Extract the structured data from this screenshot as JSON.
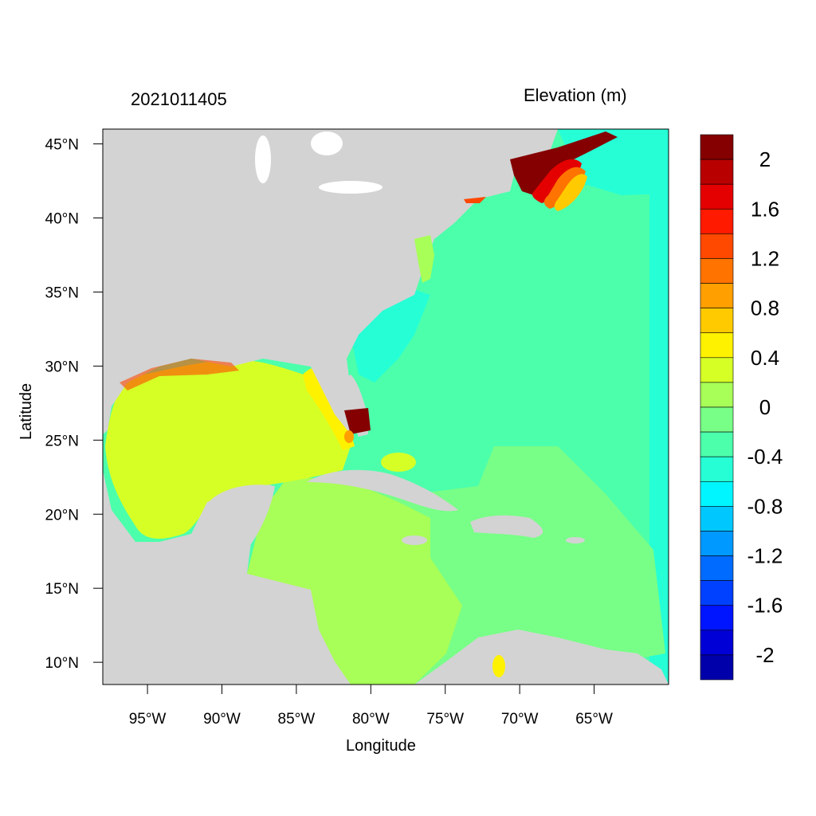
{
  "title_left": "2021011405",
  "title_right": "Elevation (m)",
  "xlabel": "Longitude",
  "ylabel": "Latitude",
  "lon_ticks": [
    "95°W",
    "90°W",
    "85°W",
    "80°W",
    "75°W",
    "70°W",
    "65°W"
  ],
  "lon_tick_values": [
    -95,
    -90,
    -85,
    -80,
    -75,
    -70,
    -65
  ],
  "lat_ticks": [
    "45°N",
    "40°N",
    "35°N",
    "30°N",
    "25°N",
    "20°N",
    "15°N",
    "10°N"
  ],
  "lat_tick_values": [
    45,
    40,
    35,
    30,
    25,
    20,
    15,
    10
  ],
  "lon_range": [
    -98,
    -60
  ],
  "lat_range": [
    8.5,
    46
  ],
  "colorbar": {
    "labels": [
      "2",
      "1.6",
      "1.2",
      "0.8",
      "0.4",
      "0",
      "-0.4",
      "-0.8",
      "-1.2",
      "-1.6",
      "-2"
    ],
    "colors": [
      "#850000",
      "#b80000",
      "#e40000",
      "#ff1a00",
      "#ff4800",
      "#ff7300",
      "#ff9f00",
      "#ffca00",
      "#fff200",
      "#d6ff26",
      "#a8ff57",
      "#78ff87",
      "#4cffab",
      "#26ffd6",
      "#00f6ff",
      "#00c8ff",
      "#0099ff",
      "#006bff",
      "#0040ff",
      "#0015ff",
      "#0000d6",
      "#0000aa"
    ]
  },
  "colors": {
    "land": "#d3d3d3",
    "ocean_main": "#4cffab",
    "gulf": "#d6ff26",
    "caribbean_west": "#a8ff57",
    "caribbean_east": "#78ff87",
    "shelf": "#26ffd6",
    "surge_max": "#850000"
  }
}
